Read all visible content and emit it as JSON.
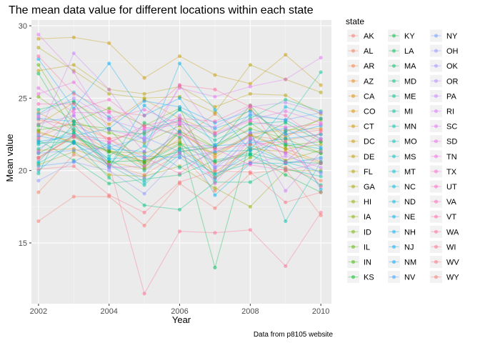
{
  "chart_data": {
    "type": "line",
    "title": "The mean data value for different locations within each state",
    "xlabel": "Year",
    "ylabel": "Mean value",
    "caption": "Data from p8105 website",
    "legend_title": "state",
    "legend_position": "right",
    "grid": true,
    "xlim": [
      2001.8,
      2010.3
    ],
    "ylim": [
      10.8,
      30.4
    ],
    "x_ticks": [
      2002,
      2004,
      2006,
      2008,
      2010
    ],
    "y_ticks": [
      15,
      20,
      25,
      30
    ],
    "x": [
      2002,
      2003,
      2004,
      2005,
      2006,
      2007,
      2008,
      2009,
      2010
    ],
    "point_alpha": 0.5,
    "line_alpha": 0.35,
    "states": [
      "AK",
      "AL",
      "AR",
      "AZ",
      "CA",
      "CO",
      "CT",
      "DC",
      "DE",
      "FL",
      "GA",
      "HI",
      "IA",
      "ID",
      "IL",
      "IN",
      "KS",
      "KY",
      "LA",
      "MA",
      "MD",
      "ME",
      "MI",
      "MN",
      "MO",
      "MS",
      "MT",
      "NC",
      "ND",
      "NE",
      "NH",
      "NJ",
      "NM",
      "NV",
      "NY",
      "OH",
      "OK",
      "OR",
      "PA",
      "RI",
      "SC",
      "SD",
      "TN",
      "TX",
      "UT",
      "VA",
      "VT",
      "WA",
      "WI",
      "WV",
      "WY"
    ],
    "colors": [
      "#F8766D",
      "#F37B59",
      "#ED8141",
      "#E7861B",
      "#E08B00",
      "#D89000",
      "#CF9400",
      "#C59900",
      "#BB9D00",
      "#B0A100",
      "#A3A500",
      "#95A900",
      "#85AD00",
      "#72B000",
      "#5BB300",
      "#39B600",
      "#00B81F",
      "#00BA42",
      "#00BC59",
      "#00BE6C",
      "#00BF7D",
      "#00C08C",
      "#00C19A",
      "#00C1A7",
      "#00C0B4",
      "#00BFC0",
      "#00BDCB",
      "#00BBD5",
      "#00B8DE",
      "#00B4E7",
      "#00B0EF",
      "#00ABF5",
      "#00A5FB",
      "#2D9FFF",
      "#6A98FF",
      "#8B93FF",
      "#A38CFF",
      "#B685FF",
      "#C77DFF",
      "#D576FB",
      "#E170F3",
      "#EA6AEA",
      "#F165E0",
      "#F763D5",
      "#FB61C8",
      "#FE61BB",
      "#FF62AD",
      "#FF649F",
      "#FE6990",
      "#FB6E81",
      "#F8766D"
    ],
    "series": [
      {
        "name": "AK",
        "values": [
          23.5,
          23.1,
          22.2,
          22.6,
          23.4,
          20.5,
          21.4,
          22.5,
          22.8
        ]
      },
      {
        "name": "AL",
        "values": [
          18.5,
          21.1,
          20.4,
          19.7,
          21.2,
          18.6,
          20.6,
          20.2,
          19.3
        ]
      },
      {
        "name": "AR",
        "values": [
          22.3,
          23.4,
          22.2,
          20.5,
          22.2,
          23.9,
          22.4,
          22.1,
          22.5
        ]
      },
      {
        "name": "AZ",
        "values": [
          24.0,
          22.8,
          21.4,
          20.6,
          22.8,
          20.9,
          22.5,
          22.8,
          22.9
        ]
      },
      {
        "name": "CA",
        "values": [
          22.7,
          21.9,
          21.3,
          20.3,
          22.6,
          21.1,
          22.4,
          21.5,
          20.6
        ]
      },
      {
        "name": "CO",
        "values": [
          21.4,
          21.5,
          20.6,
          20.1,
          21.6,
          19.9,
          21.5,
          21.3,
          20.5
        ]
      },
      {
        "name": "CT",
        "values": [
          23.2,
          24.7,
          23.2,
          24.9,
          23.6,
          22.6,
          24.2,
          22.3,
          23.6
        ]
      },
      {
        "name": "DC",
        "values": [
          29.1,
          29.2,
          28.8,
          26.4,
          27.9,
          26.6,
          26.0,
          28.0,
          25.9
        ]
      },
      {
        "name": "DE",
        "values": [
          26.9,
          27.3,
          25.6,
          25.3,
          25.8,
          24.4,
          25.3,
          25.2,
          23.9
        ]
      },
      {
        "name": "FL",
        "values": [
          28.5,
          26.9,
          25.3,
          25.0,
          25.1,
          24.0,
          27.3,
          26.3,
          25.4
        ]
      },
      {
        "name": "GA",
        "values": [
          22.6,
          22.0,
          21.4,
          20.6,
          21.9,
          21.2,
          22.5,
          21.5,
          21.8
        ]
      },
      {
        "name": "HI",
        "values": [
          20.4,
          21.3,
          19.7,
          19.6,
          20.3,
          18.8,
          17.5,
          20.0,
          20.0
        ]
      },
      {
        "name": "IA",
        "values": [
          20.9,
          22.3,
          21.3,
          21.2,
          22.0,
          19.5,
          21.8,
          20.7,
          21.4
        ]
      },
      {
        "name": "ID",
        "values": [
          25.1,
          23.4,
          22.6,
          21.9,
          23.1,
          21.6,
          22.9,
          22.2,
          21.2
        ]
      },
      {
        "name": "IL",
        "values": [
          27.3,
          23.4,
          24.3,
          23.1,
          24.3,
          19.5,
          20.9,
          22.7,
          23.5
        ]
      },
      {
        "name": "IN",
        "values": [
          22.8,
          23.2,
          22.9,
          20.2,
          22.7,
          21.6,
          23.3,
          21.7,
          22.0
        ]
      },
      {
        "name": "KS",
        "values": [
          23.1,
          22.5,
          20.6,
          20.7,
          21.3,
          21.6,
          24.5,
          21.8,
          21.2
        ]
      },
      {
        "name": "KY",
        "values": [
          21.2,
          22.4,
          21.3,
          20.5,
          21.8,
          20.6,
          21.1,
          19.7,
          18.5
        ]
      },
      {
        "name": "LA",
        "values": [
          26.7,
          22.7,
          20.3,
          23.3,
          22.3,
          13.3,
          22.1,
          23.3,
          22.0
        ]
      },
      {
        "name": "MA",
        "values": [
          22.1,
          20.7,
          19.1,
          19.4,
          19.7,
          20.7,
          21.2,
          20.6,
          20.5
        ]
      },
      {
        "name": "MD",
        "values": [
          21.9,
          22.0,
          19.5,
          17.6,
          17.3,
          19.2,
          19.2,
          20.5,
          19.0
        ]
      },
      {
        "name": "ME",
        "values": [
          24.2,
          24.8,
          22.8,
          22.5,
          24.2,
          22.4,
          23.6,
          24.9,
          24.1
        ]
      },
      {
        "name": "MI",
        "values": [
          19.8,
          24.7,
          21.0,
          22.7,
          23.5,
          22.1,
          23.2,
          23.4,
          26.8
        ]
      },
      {
        "name": "MN",
        "values": [
          20.5,
          21.9,
          20.4,
          19.0,
          21.5,
          19.7,
          21.1,
          20.1,
          19.6
        ]
      },
      {
        "name": "MO",
        "values": [
          21.5,
          22.9,
          21.7,
          20.0,
          21.5,
          21.8,
          22.8,
          16.5,
          20.6
        ]
      },
      {
        "name": "MS",
        "values": [
          20.6,
          23.2,
          20.3,
          21.7,
          20.2,
          21.3,
          21.4,
          21.9,
          21.5
        ]
      },
      {
        "name": "MT",
        "values": [
          21.8,
          22.6,
          20.8,
          19.2,
          21.1,
          19.8,
          20.5,
          20.5,
          20.9
        ]
      },
      {
        "name": "NC",
        "values": [
          23.9,
          25.4,
          23.7,
          22.1,
          24.2,
          22.9,
          23.8,
          23.5,
          22.2
        ]
      },
      {
        "name": "ND",
        "values": [
          20.0,
          22.0,
          20.8,
          21.0,
          20.9,
          19.4,
          21.6,
          20.6,
          19.9
        ]
      },
      {
        "name": "NE",
        "values": [
          23.6,
          23.4,
          21.5,
          21.3,
          27.4,
          24.2,
          21.4,
          24.4,
          23.6
        ]
      },
      {
        "name": "NH",
        "values": [
          22.4,
          21.9,
          20.2,
          24.5,
          22.6,
          18.3,
          20.5,
          22.7,
          18.7
        ]
      },
      {
        "name": "NJ",
        "values": [
          27.7,
          24.3,
          27.4,
          23.8,
          25.0,
          21.7,
          21.9,
          22.2,
          22.5
        ]
      },
      {
        "name": "NM",
        "values": [
          22.0,
          22.4,
          22.9,
          24.8,
          24.4,
          23.3,
          24.1,
          22.5,
          23.1
        ]
      },
      {
        "name": "NV",
        "values": [
          20.3,
          20.6,
          21.9,
          20.8,
          22.7,
          20.2,
          22.6,
          22.9,
          21.6
        ]
      },
      {
        "name": "NY",
        "values": [
          21.2,
          21.4,
          21.6,
          22.3,
          21.3,
          21.7,
          23.9,
          23.5,
          24.0
        ]
      },
      {
        "name": "OH",
        "values": [
          19.3,
          20.6,
          20.0,
          18.4,
          20.9,
          21.3,
          22.3,
          20.5,
          20.8
        ]
      },
      {
        "name": "OK",
        "values": [
          23.2,
          23.8,
          20.4,
          19.5,
          23.5,
          20.1,
          22.1,
          21.2,
          19.8
        ]
      },
      {
        "name": "OR",
        "values": [
          23.8,
          25.0,
          23.5,
          22.8,
          23.2,
          23.0,
          24.4,
          24.7,
          24.0
        ]
      },
      {
        "name": "PA",
        "values": [
          22.5,
          28.1,
          25.6,
          22.0,
          23.8,
          20.3,
          20.5,
          21.0,
          20.2
        ]
      },
      {
        "name": "RI",
        "values": [
          21.3,
          23.8,
          20.2,
          20.3,
          21.2,
          19.5,
          22.6,
          18.6,
          21.3
        ]
      },
      {
        "name": "SC",
        "values": [
          29.4,
          26.8,
          22.8,
          22.2,
          25.7,
          25.1,
          25.8,
          26.3,
          27.8
        ]
      },
      {
        "name": "SD",
        "values": [
          25.7,
          24.0,
          24.0,
          21.3,
          25.9,
          22.6,
          23.5,
          24.1,
          23.3
        ]
      },
      {
        "name": "TN",
        "values": [
          25.3,
          26.1,
          23.6,
          24.2,
          23.2,
          19.1,
          22.2,
          21.2,
          22.2
        ]
      },
      {
        "name": "TX",
        "values": [
          23.7,
          22.3,
          22.0,
          22.9,
          23.4,
          22.5,
          23.4,
          23.0,
          23.2
        ]
      },
      {
        "name": "UT",
        "values": [
          22.2,
          24.2,
          24.9,
          23.0,
          22.5,
          21.5,
          20.4,
          20.0,
          20.5
        ]
      },
      {
        "name": "VA",
        "values": [
          24.6,
          24.6,
          21.9,
          23.1,
          23.6,
          23.4,
          24.5,
          23.8,
          22.1
        ]
      },
      {
        "name": "VT",
        "values": [
          20.9,
          22.4,
          22.2,
          20.9,
          19.8,
          21.5,
          21.8,
          22.0,
          18.9
        ]
      },
      {
        "name": "WA",
        "values": [
          27.9,
          25.3,
          24.1,
          23.8,
          25.9,
          25.6,
          24.4,
          20.6,
          22.7
        ]
      },
      {
        "name": "WI",
        "values": [
          20.8,
          22.4,
          20.4,
          11.5,
          15.8,
          15.7,
          15.9,
          13.4,
          17.1
        ]
      },
      {
        "name": "WV",
        "values": [
          20.1,
          20.3,
          18.3,
          17.1,
          19.2,
          20.0,
          19.9,
          17.8,
          18.5
        ]
      },
      {
        "name": "WY",
        "values": [
          16.5,
          18.2,
          18.2,
          16.2,
          19.1,
          17.4,
          19.8,
          20.1,
          16.9
        ]
      }
    ]
  }
}
